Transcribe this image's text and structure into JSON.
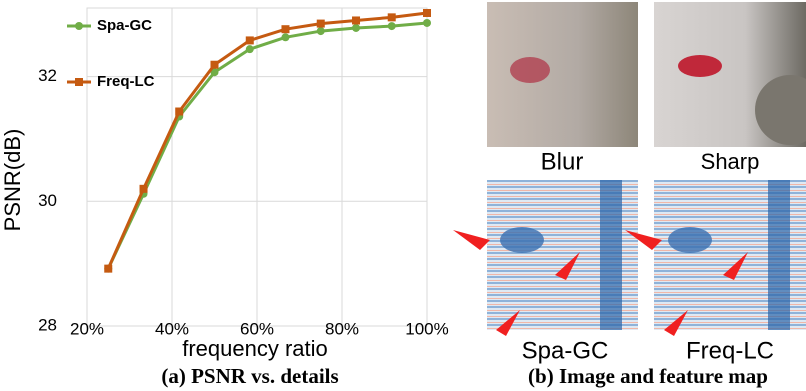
{
  "chart_data": {
    "type": "line",
    "x": [
      25,
      33.3,
      41.7,
      50,
      58.3,
      66.7,
      75,
      83.3,
      91.7,
      100
    ],
    "series": [
      {
        "name": "Spa-GC",
        "color": "#70ad47",
        "marker": "circle",
        "values": [
          28.92,
          30.12,
          31.36,
          32.07,
          32.44,
          32.63,
          32.73,
          32.78,
          32.81,
          32.86
        ]
      },
      {
        "name": "Freq-LC",
        "color": "#c55a11",
        "marker": "square",
        "values": [
          28.92,
          30.2,
          31.44,
          32.19,
          32.58,
          32.76,
          32.85,
          32.9,
          32.95,
          33.02
        ]
      }
    ],
    "xlabel": "frequency ratio",
    "ylabel": "PSNR(dB)",
    "xlim": [
      20,
      100
    ],
    "ylim": [
      28,
      33.1
    ],
    "xticks": [
      {
        "value": 20,
        "label": "20%"
      },
      {
        "value": 40,
        "label": "40%"
      },
      {
        "value": 60,
        "label": "60%"
      },
      {
        "value": 80,
        "label": "80%"
      },
      {
        "value": 100,
        "label": "100%"
      }
    ],
    "yticks": [
      28,
      30,
      32
    ],
    "grid": true,
    "legend": "upper-left"
  },
  "captions": {
    "left": "(a) PSNR vs. details",
    "right": "(b) Image and feature map"
  },
  "image_labels": {
    "blur": "Blur",
    "sharp": "Sharp",
    "spa": "Spa-GC",
    "freq": "Freq-LC"
  }
}
